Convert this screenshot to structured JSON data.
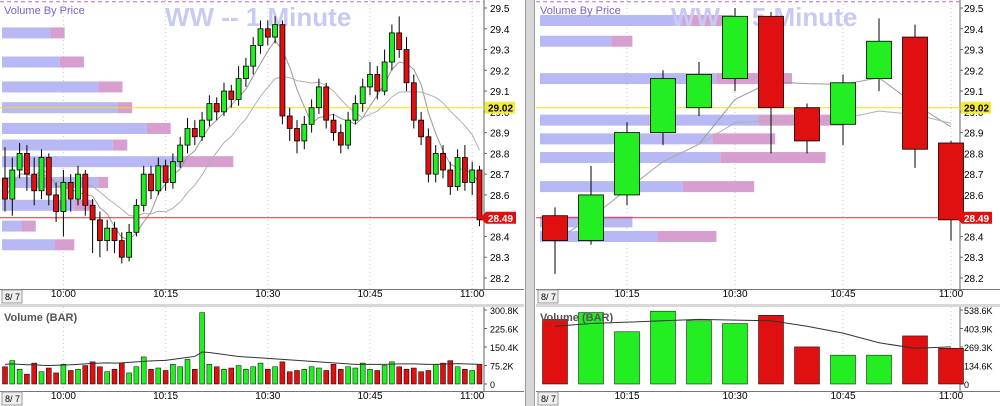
{
  "colors": {
    "up": "#22ee22",
    "down": "#e01010",
    "vbp_up": "#b8b8f4",
    "vbp_down": "#d79ed0",
    "title": "#c9c9f5",
    "current_line": "#e03030",
    "ref_line": "#f3e200",
    "dashed_line": "#b070c8",
    "volume_bar": "#111111",
    "grid": "#c8c8c8"
  },
  "chart_data": [
    {
      "id": "chart-1min",
      "type": "candlestick",
      "title": "WW -- 1 Minute",
      "legend": "Volume By Price",
      "price_axis": {
        "min": 28.2,
        "max": 29.5,
        "ticks": [
          "29.5",
          "29.4",
          "29.3",
          "29.2",
          "29.1",
          "29.0",
          "28.9",
          "28.8",
          "28.7",
          "28.6",
          "28.5",
          "28.4",
          "28.3",
          "28.2"
        ]
      },
      "date_marker": "8/ 7",
      "time_labels": [
        "10:00",
        "10:15",
        "10:30",
        "10:45",
        "11:00"
      ],
      "time_index": [
        8,
        22,
        36,
        50,
        64
      ],
      "last_price": "28.49",
      "ref_price": "29.02",
      "ref_price_value": 29.02,
      "last_price_value": 28.49,
      "dashed_level": 29.53,
      "candles": [
        [
          28.68,
          28.58,
          28.83,
          28.52
        ],
        [
          28.58,
          28.72,
          28.78,
          28.5
        ],
        [
          28.72,
          28.8,
          28.85,
          28.68
        ],
        [
          28.8,
          28.7,
          28.84,
          28.62
        ],
        [
          28.7,
          28.62,
          28.78,
          28.55
        ],
        [
          28.62,
          28.78,
          28.82,
          28.58
        ],
        [
          28.78,
          28.6,
          28.8,
          28.55
        ],
        [
          28.6,
          28.52,
          28.66,
          28.47
        ],
        [
          28.52,
          28.66,
          28.72,
          28.4
        ],
        [
          28.66,
          28.58,
          28.7,
          28.52
        ],
        [
          28.58,
          28.7,
          28.74,
          28.55
        ],
        [
          28.7,
          28.55,
          28.72,
          28.5
        ],
        [
          28.55,
          28.48,
          28.58,
          28.32
        ],
        [
          28.48,
          28.38,
          28.52,
          28.3
        ],
        [
          28.38,
          28.44,
          28.48,
          28.33
        ],
        [
          28.44,
          28.38,
          28.47,
          28.32
        ],
        [
          28.38,
          28.3,
          28.42,
          28.27
        ],
        [
          28.3,
          28.42,
          28.46,
          28.28
        ],
        [
          28.42,
          28.55,
          28.58,
          28.4
        ],
        [
          28.55,
          28.7,
          28.74,
          28.52
        ],
        [
          28.7,
          28.62,
          28.74,
          28.58
        ],
        [
          28.62,
          28.74,
          28.78,
          28.6
        ],
        [
          28.74,
          28.66,
          28.77,
          28.62
        ],
        [
          28.66,
          28.76,
          28.8,
          28.63
        ],
        [
          28.76,
          28.84,
          28.88,
          28.73
        ],
        [
          28.84,
          28.92,
          28.97,
          28.8
        ],
        [
          28.92,
          28.88,
          28.96,
          28.84
        ],
        [
          28.88,
          28.96,
          29.0,
          28.86
        ],
        [
          28.96,
          29.04,
          29.08,
          28.93
        ],
        [
          29.04,
          29.0,
          29.07,
          28.96
        ],
        [
          29.0,
          29.1,
          29.14,
          28.98
        ],
        [
          29.1,
          29.06,
          29.13,
          29.02
        ],
        [
          29.06,
          29.16,
          29.22,
          29.03
        ],
        [
          29.16,
          29.22,
          29.26,
          29.12
        ],
        [
          29.22,
          29.32,
          29.36,
          29.18
        ],
        [
          29.32,
          29.4,
          29.44,
          29.28
        ],
        [
          29.4,
          29.36,
          29.44,
          29.32
        ],
        [
          29.36,
          29.42,
          29.46,
          29.33
        ],
        [
          29.42,
          28.98,
          29.44,
          28.94
        ],
        [
          28.98,
          28.92,
          29.02,
          28.86
        ],
        [
          28.92,
          28.86,
          28.96,
          28.8
        ],
        [
          28.86,
          28.94,
          28.98,
          28.82
        ],
        [
          28.94,
          29.02,
          29.06,
          28.9
        ],
        [
          29.02,
          29.12,
          29.16,
          28.99
        ],
        [
          29.12,
          28.96,
          29.14,
          28.92
        ],
        [
          28.96,
          28.9,
          28.99,
          28.86
        ],
        [
          28.9,
          28.84,
          28.94,
          28.8
        ],
        [
          28.84,
          28.96,
          29.0,
          28.82
        ],
        [
          28.96,
          29.04,
          29.08,
          28.94
        ],
        [
          29.04,
          29.12,
          29.16,
          29.0
        ],
        [
          29.12,
          29.18,
          29.24,
          29.08
        ],
        [
          29.18,
          29.1,
          29.22,
          29.06
        ],
        [
          29.1,
          29.24,
          29.3,
          29.08
        ],
        [
          29.24,
          29.38,
          29.42,
          29.2
        ],
        [
          29.38,
          29.3,
          29.46,
          29.26
        ],
        [
          29.3,
          29.14,
          29.36,
          29.1
        ],
        [
          29.14,
          28.96,
          29.18,
          28.92
        ],
        [
          28.96,
          28.88,
          29.0,
          28.84
        ],
        [
          28.88,
          28.7,
          28.92,
          28.66
        ],
        [
          28.7,
          28.8,
          28.84,
          28.66
        ],
        [
          28.8,
          28.72,
          28.84,
          28.68
        ],
        [
          28.72,
          28.64,
          28.76,
          28.6
        ],
        [
          28.64,
          28.78,
          28.82,
          28.62
        ],
        [
          28.78,
          28.66,
          28.84,
          28.62
        ],
        [
          28.66,
          28.72,
          28.76,
          28.6
        ],
        [
          28.72,
          28.48,
          28.74,
          28.45
        ]
      ],
      "vbp": [
        {
          "price": 29.38,
          "up": 0.1,
          "down": 0.03
        },
        {
          "price": 29.24,
          "up": 0.12,
          "down": 0.05
        },
        {
          "price": 29.12,
          "up": 0.2,
          "down": 0.05
        },
        {
          "price": 29.02,
          "up": 0.24,
          "down": 0.03
        },
        {
          "price": 28.92,
          "up": 0.3,
          "down": 0.05
        },
        {
          "price": 28.84,
          "up": 0.23,
          "down": 0.03
        },
        {
          "price": 28.76,
          "up": 0.37,
          "down": 0.11
        },
        {
          "price": 28.66,
          "up": 0.2,
          "down": 0.02
        },
        {
          "price": 28.55,
          "up": 0.15,
          "down": 0.04
        },
        {
          "price": 28.45,
          "up": 0.04,
          "down": 0.03
        },
        {
          "price": 28.36,
          "up": 0.11,
          "down": 0.04
        }
      ],
      "volume": {
        "title": "Volume (BAR)",
        "axis_labels": [
          "300.8K",
          "225.6K",
          "150.4K",
          "75.2K",
          "0"
        ],
        "axis_values": [
          300.8,
          225.6,
          150.4,
          75.2,
          0
        ],
        "max": 300.8,
        "time_labels": [
          "10:00",
          "10:15",
          "10:30",
          "10:45",
          "11:00"
        ],
        "values": [
          70,
          95,
          60,
          40,
          85,
          50,
          65,
          45,
          80,
          55,
          60,
          75,
          90,
          70,
          50,
          60,
          85,
          45,
          70,
          110,
          60,
          65,
          55,
          80,
          70,
          100,
          60,
          290,
          80,
          70,
          60,
          65,
          75,
          60,
          70,
          85,
          60,
          70,
          90,
          50,
          55,
          60,
          70,
          65,
          55,
          80,
          60,
          70,
          65,
          85,
          60,
          55,
          75,
          90,
          70,
          60,
          65,
          50,
          55,
          80,
          85,
          95,
          70,
          60,
          55,
          80
        ],
        "ma": [
          80,
          82,
          80,
          78,
          78,
          76,
          75,
          76,
          77,
          78,
          80,
          82,
          84,
          85,
          86,
          85,
          86,
          88,
          90,
          92,
          94,
          95,
          96,
          100,
          104,
          108,
          112,
          130,
          128,
          124,
          120,
          116,
          112,
          110,
          108,
          106,
          104,
          102,
          100,
          98,
          96,
          94,
          92,
          90,
          88,
          86,
          84,
          82,
          80,
          80,
          80,
          80,
          80,
          81,
          82,
          82,
          82,
          81,
          80,
          80,
          81,
          82,
          83,
          82,
          81,
          80
        ]
      }
    },
    {
      "id": "chart-5min",
      "type": "candlestick",
      "title": "WW -- 5 Minute",
      "legend": "Volume By Price",
      "price_axis": {
        "min": 28.2,
        "max": 29.5,
        "ticks": [
          "29.5",
          "29.4",
          "29.3",
          "29.2",
          "29.1",
          "29.0",
          "28.9",
          "28.8",
          "28.7",
          "28.6",
          "28.5",
          "28.4",
          "28.3",
          "28.2"
        ]
      },
      "date_marker": "8/ 7",
      "time_labels": [
        "10:15",
        "10:30",
        "10:45",
        "11:00"
      ],
      "time_index": [
        2,
        5,
        8,
        11
      ],
      "last_price": "28.49",
      "ref_price": "29.02",
      "ref_price_value": 29.02,
      "last_price_value": 28.49,
      "dashed_level": 29.53,
      "candles": [
        [
          28.5,
          28.38,
          28.54,
          28.22
        ],
        [
          28.38,
          28.6,
          28.74,
          28.36
        ],
        [
          28.6,
          28.9,
          28.95,
          28.55
        ],
        [
          28.9,
          29.16,
          29.2,
          28.84
        ],
        [
          29.02,
          29.18,
          29.24,
          28.98
        ],
        [
          29.16,
          29.46,
          29.5,
          29.1
        ],
        [
          29.46,
          29.02,
          29.48,
          28.8
        ],
        [
          29.02,
          28.86,
          29.04,
          28.8
        ],
        [
          28.94,
          29.14,
          29.18,
          28.84
        ],
        [
          29.16,
          29.34,
          29.45,
          29.1
        ],
        [
          29.36,
          28.82,
          29.42,
          28.73
        ],
        [
          28.85,
          28.48,
          28.86,
          28.38
        ]
      ],
      "vbp": [
        {
          "price": 29.44,
          "up": 0.34,
          "down": 0.12
        },
        {
          "price": 29.34,
          "up": 0.17,
          "down": 0.05
        },
        {
          "price": 29.16,
          "up": 0.42,
          "down": 0.18
        },
        {
          "price": 28.96,
          "up": 0.52,
          "down": 0.2
        },
        {
          "price": 28.87,
          "up": 0.41,
          "down": 0.15
        },
        {
          "price": 28.78,
          "up": 0.43,
          "down": 0.25
        },
        {
          "price": 28.64,
          "up": 0.34,
          "down": 0.17
        },
        {
          "price": 28.47,
          "up": 0.22,
          "down": 0.0
        },
        {
          "price": 28.4,
          "up": 0.28,
          "down": 0.14
        }
      ],
      "volume": {
        "title": "Volume (BAR)",
        "axis_labels": [
          "538.6K",
          "403.9K",
          "269.3K",
          "134.6K",
          "0"
        ],
        "axis_values": [
          538.6,
          403.9,
          269.3,
          134.6,
          0
        ],
        "max": 538.6,
        "time_labels": [
          "10:15",
          "10:30",
          "10:45",
          "11:00"
        ],
        "values": [
          470,
          520,
          380,
          530,
          460,
          440,
          500,
          270,
          210,
          210,
          350,
          260
        ],
        "ma": [
          420,
          440,
          450,
          460,
          470,
          465,
          460,
          420,
          370,
          300,
          260,
          270
        ]
      }
    }
  ]
}
